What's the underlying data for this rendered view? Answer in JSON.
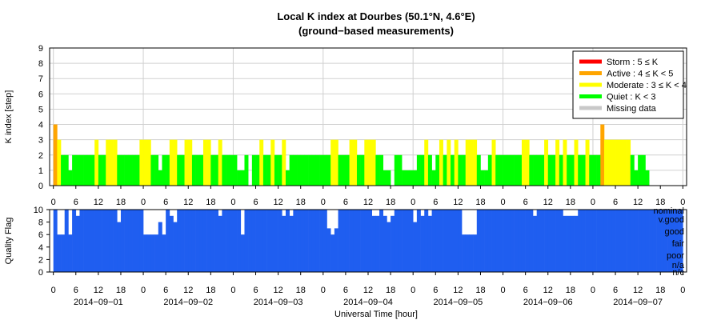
{
  "chart_data": {
    "type": "bar",
    "title": "Local K index at Dourbes (50.1°N, 4.6°E)",
    "subtitle": "(ground−based measurements)",
    "k_panel": {
      "ylabel": "K index [step]",
      "ylim": [
        0,
        9
      ],
      "yticks": [
        "0",
        "1",
        "2",
        "3",
        "4",
        "5",
        "6",
        "7",
        "8",
        "9"
      ],
      "grid": true,
      "legend_position": "top-right",
      "legend": [
        {
          "label": "Storm : 5 ≤ K",
          "color": "#ff0000"
        },
        {
          "label": "Active : 4 ≤ K < 5",
          "color": "#ffa500"
        },
        {
          "label": "Moderate : 3 ≤ K < 4",
          "color": "#ffff00"
        },
        {
          "label": "Quiet : K < 3",
          "color": "#00ff00"
        },
        {
          "label": "Missing data",
          "color": "#c8c8c8"
        }
      ],
      "bin_hours": 1,
      "k_values": [
        4,
        3,
        2,
        2,
        1,
        2,
        2,
        2,
        2,
        2,
        2,
        3,
        2,
        2,
        3,
        3,
        3,
        2,
        2,
        2,
        2,
        2,
        2,
        3,
        3,
        3,
        2,
        2,
        1,
        2,
        2,
        3,
        3,
        2,
        2,
        3,
        3,
        2,
        2,
        2,
        3,
        3,
        2,
        2,
        3,
        2,
        2,
        2,
        2,
        1,
        1,
        2,
        0,
        2,
        2,
        3,
        2,
        2,
        3,
        2,
        2,
        3,
        1,
        2,
        2,
        2,
        2,
        2,
        2,
        2,
        2,
        2,
        2,
        2,
        3,
        3,
        2,
        2,
        2,
        3,
        3,
        2,
        2,
        3,
        3,
        3,
        2,
        2,
        1,
        1,
        0,
        2,
        2,
        1,
        1,
        1,
        1,
        2,
        2,
        3,
        2,
        1,
        2,
        3,
        2,
        3,
        2,
        3,
        2,
        2,
        3,
        3,
        3,
        2,
        1,
        1,
        2,
        3,
        2,
        2,
        2,
        2,
        2,
        2,
        2,
        3,
        3,
        2,
        2,
        2,
        2,
        3,
        2,
        2,
        3,
        2,
        3,
        2,
        2,
        3,
        2,
        2,
        3,
        2,
        2,
        2,
        4,
        3,
        3,
        3,
        3,
        3,
        3,
        3,
        2,
        1,
        2,
        2,
        1,
        0,
        0,
        0,
        0,
        0,
        0,
        0,
        0,
        0
      ],
      "note_last_bins_empty": true
    },
    "quality_panel": {
      "ylabel": "Quality Flag",
      "ylim": [
        0,
        10
      ],
      "yticks": [
        "0",
        "2",
        "4",
        "6",
        "8",
        "10"
      ],
      "category_labels": [
        "nominal",
        "v.good",
        "good",
        "fair",
        "poor",
        "n/a",
        "n/c"
      ],
      "bar_color": "#1f5ef0",
      "quality_values": [
        10,
        6,
        6,
        10,
        6,
        10,
        9,
        10,
        10,
        10,
        10,
        10,
        10,
        10,
        10,
        10,
        10,
        8,
        10,
        10,
        10,
        10,
        10,
        10,
        6,
        6,
        6,
        6,
        8,
        6,
        10,
        9,
        8,
        10,
        10,
        10,
        10,
        10,
        10,
        10,
        10,
        10,
        10,
        10,
        9,
        10,
        10,
        10,
        10,
        10,
        6,
        10,
        10,
        10,
        10,
        10,
        10,
        10,
        10,
        10,
        10,
        9,
        10,
        9,
        10,
        10,
        10,
        10,
        10,
        10,
        10,
        10,
        10,
        7,
        6,
        7,
        10,
        10,
        10,
        10,
        10,
        10,
        10,
        10,
        10,
        9,
        9,
        10,
        9,
        8,
        9,
        10,
        10,
        10,
        10,
        10,
        8,
        10,
        9,
        10,
        9,
        10,
        10,
        10,
        10,
        10,
        10,
        10,
        10,
        6,
        6,
        6,
        6,
        10,
        10,
        10,
        10,
        10,
        10,
        10,
        10,
        10,
        10,
        10,
        10,
        10,
        10,
        10,
        9,
        10,
        10,
        10,
        10,
        10,
        10,
        10,
        9,
        9,
        9,
        9,
        10,
        10,
        10,
        10,
        10,
        10,
        10,
        10,
        10,
        10,
        10,
        10,
        10,
        10,
        10,
        10,
        10,
        10,
        10,
        10,
        10,
        10,
        10,
        10,
        10,
        10,
        10,
        10
      ]
    },
    "x_axis": {
      "xlabel": "Universal Time [hour]",
      "hour_ticks": [
        "0",
        "6",
        "12",
        "18",
        "0",
        "6",
        "12",
        "18",
        "0",
        "6",
        "12",
        "18",
        "0",
        "6",
        "12",
        "18",
        "0",
        "6",
        "12",
        "18",
        "0",
        "6",
        "12",
        "18",
        "0",
        "6",
        "12",
        "18",
        "0"
      ],
      "dates": [
        "2014−09−01",
        "2014−09−02",
        "2014−09−03",
        "2014−09−04",
        "2014−09−05",
        "2014−09−06",
        "2014−09−07"
      ]
    }
  }
}
